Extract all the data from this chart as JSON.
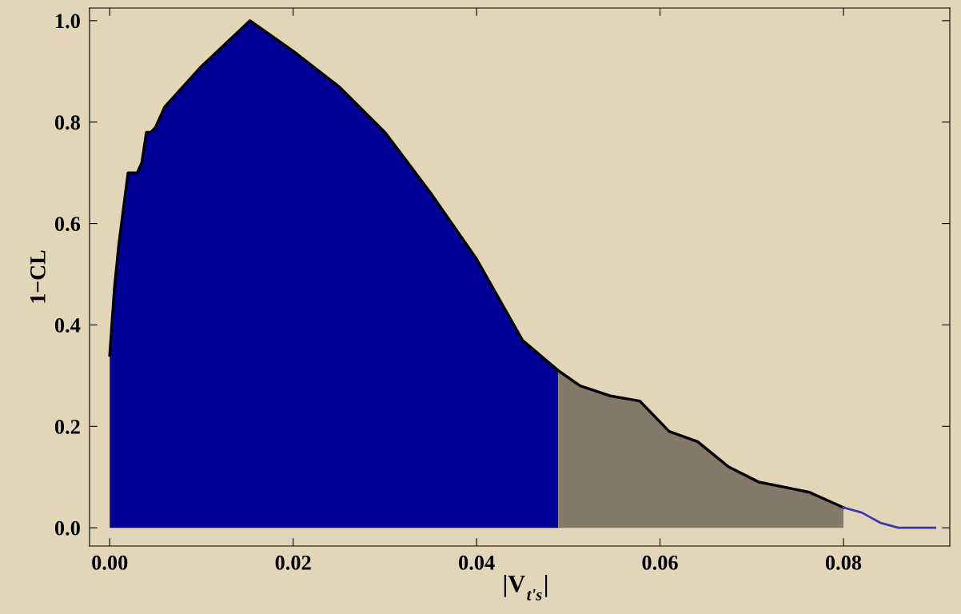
{
  "chart_data": {
    "type": "area",
    "xlabel": "|V$_{t's}$|",
    "ylabel": "1−CL",
    "series": [
      {
        "color": "#000099",
        "x": [
          0.0,
          0.0005,
          0.001,
          0.0015,
          0.002,
          0.003,
          0.0035,
          0.004,
          0.0045,
          0.005,
          0.0055,
          0.006,
          0.01,
          0.0153,
          0.02,
          0.025,
          0.03,
          0.035,
          0.04,
          0.045,
          0.0489
        ],
        "values": [
          0.34,
          0.47,
          0.56,
          0.63,
          0.7,
          0.7,
          0.72,
          0.78,
          0.78,
          0.79,
          0.81,
          0.83,
          0.91,
          1.0,
          0.94,
          0.87,
          0.78,
          0.66,
          0.53,
          0.37,
          0.31
        ]
      },
      {
        "color": "#857a69",
        "x": [
          0.0489,
          0.0513,
          0.0546,
          0.0578,
          0.061,
          0.0641,
          0.0675,
          0.0708,
          0.0736,
          0.0763,
          0.08
        ],
        "values": [
          0.31,
          0.28,
          0.26,
          0.25,
          0.19,
          0.17,
          0.12,
          0.09,
          0.08,
          0.07,
          0.04
        ]
      },
      {
        "type": "line",
        "color": "#3b3bb0",
        "x": [
          0.08,
          0.082,
          0.084,
          0.086,
          0.088,
          0.09
        ],
        "values": [
          0.04,
          0.03,
          0.01,
          0.0,
          0.0,
          0.0
        ]
      }
    ],
    "xlim": [
      -0.0022,
      0.0916
    ],
    "ylim": [
      -0.036,
      1.025
    ],
    "xticks": [
      {
        "value": 0,
        "label": "0.00"
      },
      0.02,
      0.04,
      0.06,
      0.08
    ],
    "yticks": [
      {
        "value": 0,
        "label": "0.0"
      },
      {
        "value": 0.2,
        "label": "0.2"
      },
      {
        "value": 0.4,
        "label": "0.4"
      },
      {
        "value": 0.6,
        "label": "0.6"
      },
      {
        "value": 0.8,
        "label": "0.8"
      },
      {
        "value": 1,
        "label": "1.0"
      }
    ],
    "grid": false,
    "legend": false
  }
}
